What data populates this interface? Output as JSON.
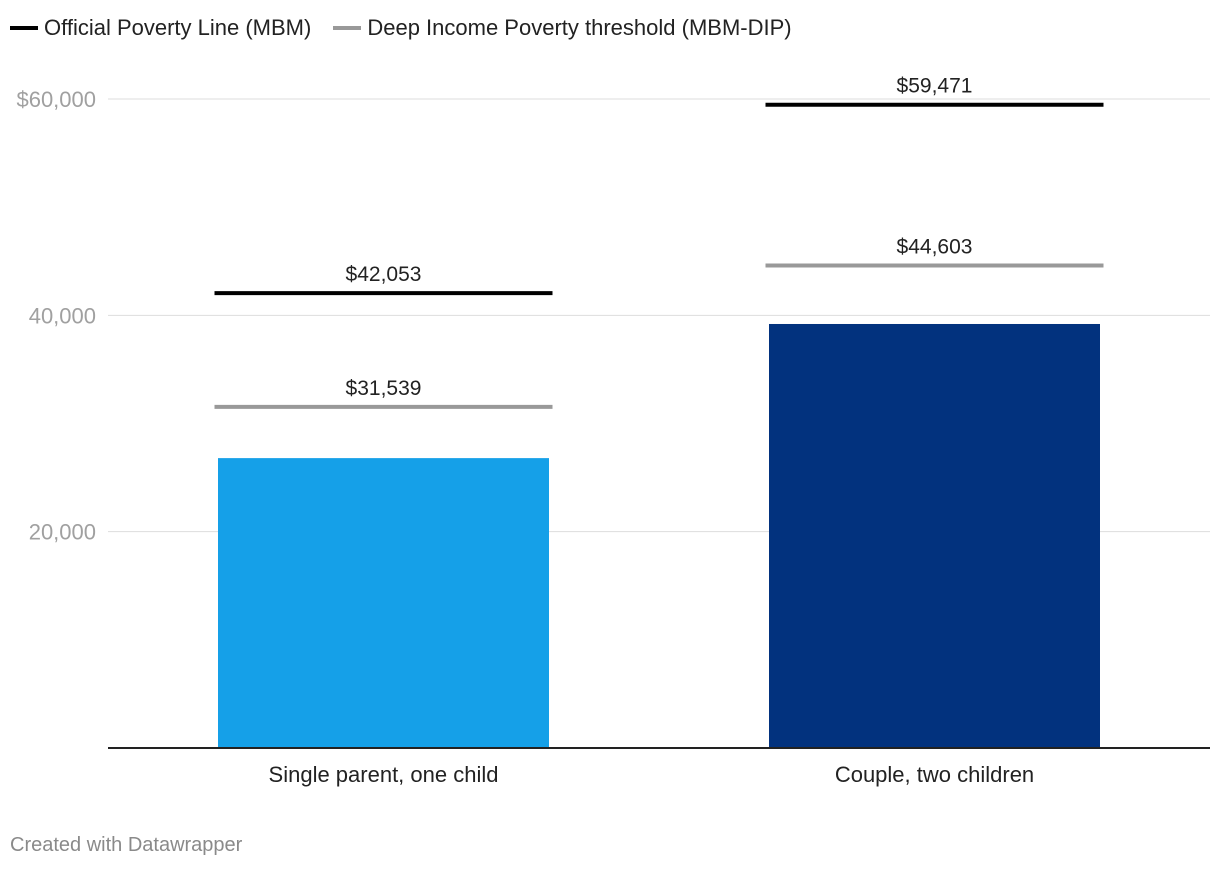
{
  "legend": {
    "items": [
      {
        "label": "Official Poverty Line (MBM)",
        "color": "#000000"
      },
      {
        "label": "Deep Income Poverty threshold (MBM-DIP)",
        "color": "#999999"
      }
    ]
  },
  "chart_data": {
    "type": "bar",
    "categories": [
      "Single parent, one child",
      "Couple, two children"
    ],
    "values": [
      26800,
      39200
    ],
    "bar_colors": [
      "#15a0e8",
      "#02327e"
    ],
    "ylim": [
      0,
      60000
    ],
    "y_ticks": [
      {
        "value": 20000,
        "label": "20,000"
      },
      {
        "value": 40000,
        "label": "40,000"
      },
      {
        "value": 60000,
        "label": "$60,000"
      }
    ],
    "grid": true,
    "legend_position": "top-left",
    "reference_lines": [
      {
        "series": "Official Poverty Line (MBM)",
        "color": "#000000",
        "values": [
          42053,
          59471
        ],
        "labels": [
          "$42,053",
          "$59,471"
        ]
      },
      {
        "series": "Deep Income Poverty threshold (MBM-DIP)",
        "color": "#999999",
        "values": [
          31539,
          44603
        ],
        "labels": [
          "$31,539",
          "$44,603"
        ]
      }
    ]
  },
  "footer": {
    "credit": "Created with Datawrapper"
  }
}
